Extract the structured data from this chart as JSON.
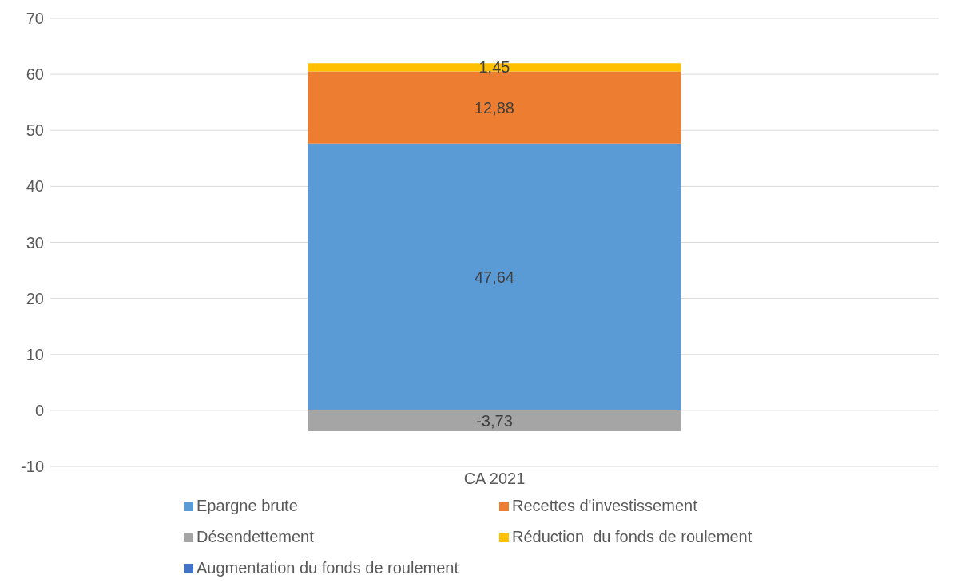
{
  "chart_data": {
    "type": "bar",
    "stacked": true,
    "categories": [
      "CA 2021"
    ],
    "series": [
      {
        "name": "Epargne brute",
        "color": "#5b9bd5",
        "values": [
          47.64
        ],
        "value_labels": [
          "47,64"
        ]
      },
      {
        "name": "Recettes d'investissement",
        "color": "#ed7d31",
        "values": [
          12.88
        ],
        "value_labels": [
          "12,88"
        ]
      },
      {
        "name": "Désendettement",
        "color": "#a5a5a5",
        "values": [
          -3.73
        ],
        "value_labels": [
          "-3,73"
        ]
      },
      {
        "name": "Réduction  du fonds de roulement",
        "color": "#ffc000",
        "values": [
          1.45
        ],
        "value_labels": [
          "1,45"
        ]
      },
      {
        "name": "Augmentation du fonds de roulement",
        "color": "#4472c4",
        "values": [
          null
        ],
        "value_labels": [
          null
        ]
      }
    ],
    "ylim": [
      -10,
      70
    ],
    "yticks": [
      -10,
      0,
      10,
      20,
      30,
      40,
      50,
      60,
      70
    ],
    "grid": "y",
    "legend": "bottom"
  }
}
